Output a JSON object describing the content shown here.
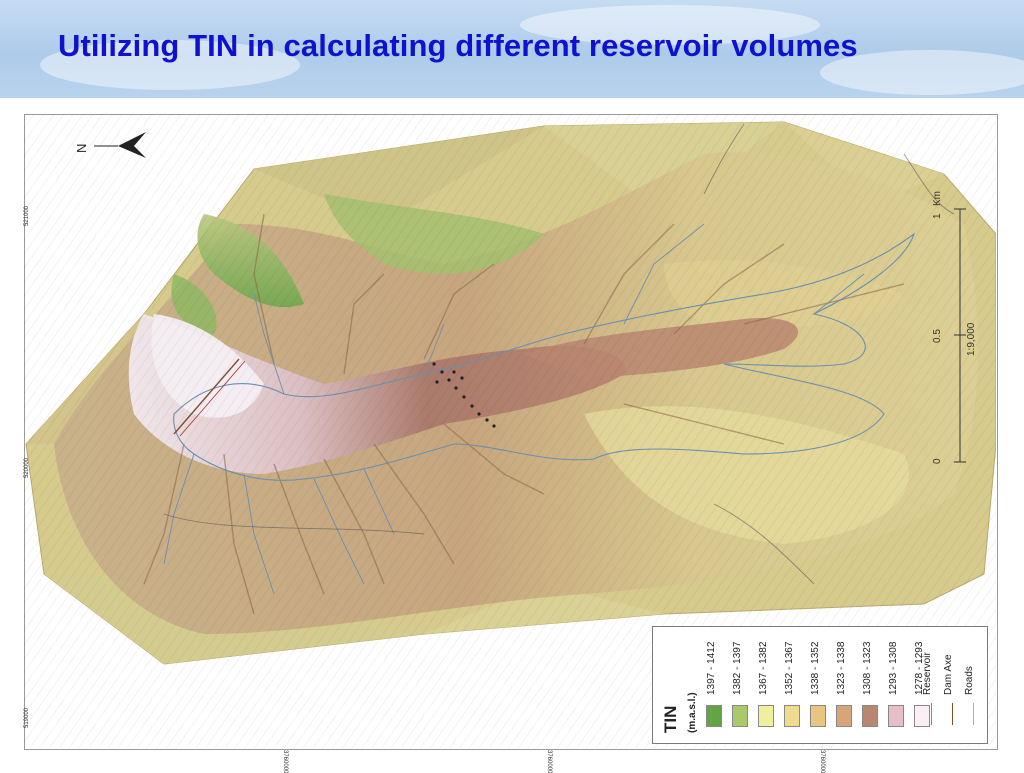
{
  "slide": {
    "title": "Utilizing TIN in calculating different reservoir volumes"
  },
  "map": {
    "north_label": "N",
    "scale_bar": {
      "unit": "Km",
      "ticks": [
        "0",
        "0.5",
        "1"
      ],
      "ratio": "1:9,000"
    },
    "left_coordinates": [
      "521000",
      "520000",
      "519000"
    ],
    "bottom_coordinates": [
      "3760000",
      "3760000",
      "3760000"
    ],
    "colors": {
      "highest": "#64a346",
      "lowest": "#fbeef6",
      "reservoir_line": "#6a8fb0",
      "dam_axe_line": "#7a4e2e",
      "roads_line": "#b0b0b0"
    }
  },
  "legend": {
    "title": "TIN",
    "unit": "(m.a.s.l.)",
    "classes": [
      {
        "label": "1397 - 1412",
        "color": "#64a346"
      },
      {
        "label": "1382 - 1397",
        "color": "#a9c96a"
      },
      {
        "label": "1367 - 1382",
        "color": "#f2eea0"
      },
      {
        "label": "1352 - 1367",
        "color": "#f0dc8e"
      },
      {
        "label": "1338 - 1352",
        "color": "#e8c681"
      },
      {
        "label": "1323 - 1338",
        "color": "#d8a57a"
      },
      {
        "label": "1308 - 1323",
        "color": "#b98670"
      },
      {
        "label": "1293 - 1308",
        "color": "#e8bfc6"
      },
      {
        "label": "1278 - 1293",
        "color": "#fbeef6"
      }
    ],
    "lines": [
      {
        "label": "Reservoir",
        "color": "#6a8fb0"
      },
      {
        "label": "Dam Axe",
        "color": "#7a4e2e"
      },
      {
        "label": "Roads",
        "color": "#b0b0b0"
      }
    ]
  }
}
